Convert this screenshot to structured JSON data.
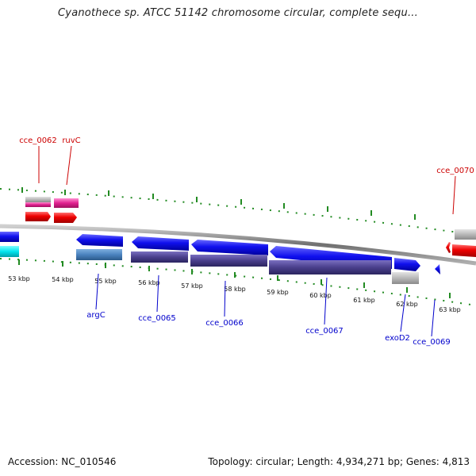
{
  "header": {
    "title": "Cyanothece sp. ATCC 51142 chromosome circular, complete sequ..."
  },
  "ticks": [
    "53 kbp",
    "54 kbp",
    "55 kbp",
    "56 kbp",
    "57 kbp",
    "58 kbp",
    "59 kbp",
    "60 kbp",
    "61 kbp",
    "62 kbp",
    "63 kbp"
  ],
  "genes_top": [
    "cce_0062",
    "ruvC",
    "cce_0070"
  ],
  "genes_bottom": [
    "argC",
    "cce_0065",
    "cce_0066",
    "cce_0067",
    "exoD2",
    "cce_0069"
  ],
  "colors": {
    "top_label": "#cc0000",
    "bottom_label": "#0000cc",
    "tick": "#228b22",
    "cds_forward": "#0000ee",
    "cds_reverse": "#ee0000",
    "gene_bar": "#4a3f8c"
  },
  "footer": {
    "accession": "Accession: NC_010546",
    "stats": "Topology: circular; Length: 4,934,271 bp; Genes: 4,813"
  }
}
